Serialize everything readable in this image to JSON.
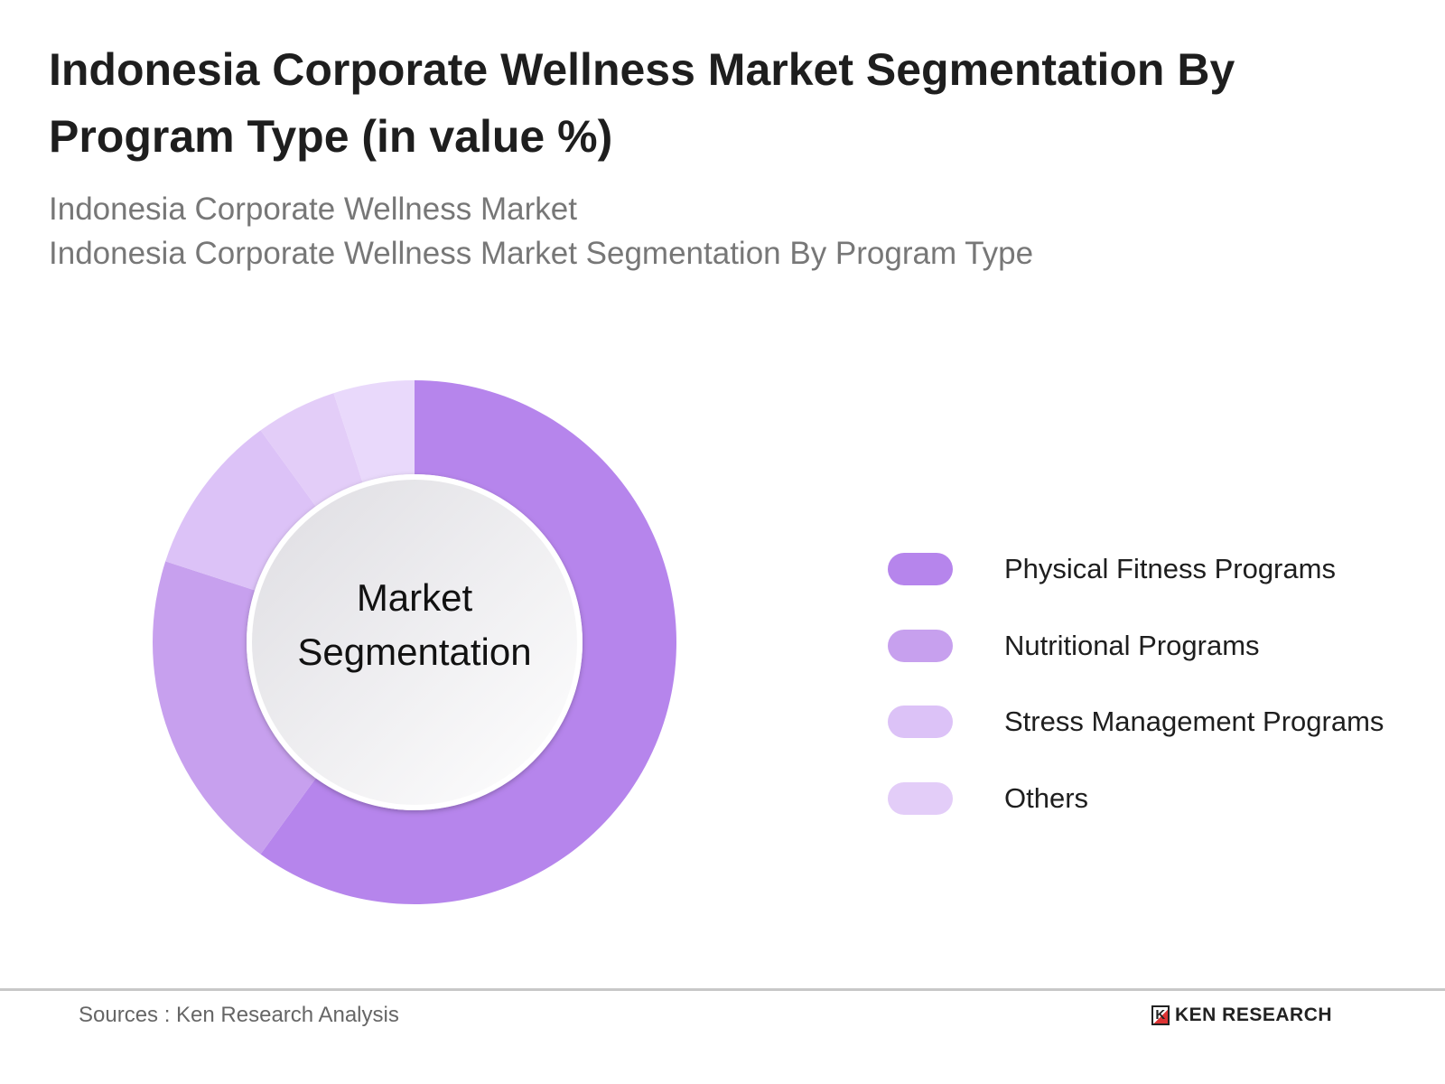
{
  "title": "Indonesia Corporate Wellness Market Segmentation By Program Type (in value %)",
  "subtitle_lines": [
    "Indonesia Corporate Wellness Market",
    "Indonesia Corporate Wellness Market Segmentation By Program Type"
  ],
  "footer": {
    "sources": "Sources : Ken Research Analysis",
    "logo": "KEN RESEARCH",
    "logo_mark": "K"
  },
  "chart_data": {
    "type": "pie",
    "subtype": "donut",
    "center_label": [
      "Market",
      "Segmentation"
    ],
    "categories": [
      "Physical Fitness Programs",
      "Nutritional Programs",
      "Stress Management Programs",
      "Others",
      ""
    ],
    "values": [
      60,
      20,
      10,
      5,
      5
    ],
    "colors": [
      "#b685ec",
      "#c7a0ee",
      "#dcc2f7",
      "#e3cdf8",
      "#e9d9fb"
    ],
    "legend": {
      "placement": "right",
      "entries": [
        "Physical Fitness Programs",
        "Nutritional Programs",
        "Stress Management Programs",
        "Others"
      ]
    }
  }
}
